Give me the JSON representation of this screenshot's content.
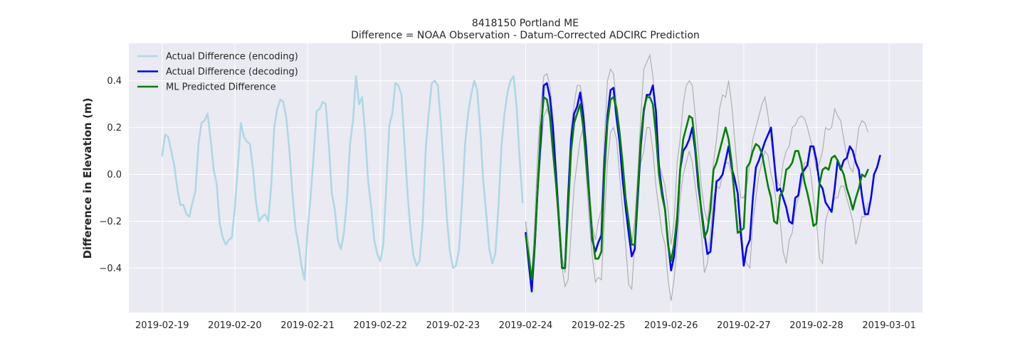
{
  "chart_data": {
    "type": "line",
    "title": "8418150 Portland ME",
    "subtitle": "Difference = NOAA Observation - Datum-Corrected ADCIRC Prediction",
    "xlabel": "",
    "ylabel": "Difference in Elevation (m)",
    "x_ticks": [
      "2019-02-19",
      "2019-02-20",
      "2019-02-21",
      "2019-02-22",
      "2019-02-23",
      "2019-02-24",
      "2019-02-25",
      "2019-02-26",
      "2019-02-27",
      "2019-02-28",
      "2019-03-01"
    ],
    "y_ticks": [
      "−0.4",
      "−0.2",
      "0.0",
      "0.2",
      "0.4"
    ],
    "y_tick_values": [
      -0.4,
      -0.2,
      0.0,
      0.2,
      0.4
    ],
    "xlim": [
      "2019-02-18T13:00",
      "2019-03-01T11:00"
    ],
    "ylim": [
      -0.59,
      0.56
    ],
    "grid": true,
    "legend_position": "upper left",
    "colors": {
      "background": "#eaeaf2",
      "grid": "#ffffff",
      "encoding": "#add8e6",
      "decoding": "#0000ff",
      "predicted": "#008000",
      "envelope": "#b0b0b0"
    },
    "series": [
      {
        "name": "Actual Difference (encoding)",
        "color": "#add8e6",
        "start": "2019-02-19T00:00",
        "step_hours": 1,
        "values": [
          0.08,
          0.17,
          0.16,
          0.1,
          0.04,
          -0.06,
          -0.13,
          -0.13,
          -0.17,
          -0.18,
          -0.12,
          -0.07,
          0.13,
          0.22,
          0.23,
          0.26,
          0.15,
          0.02,
          -0.04,
          -0.21,
          -0.27,
          -0.3,
          -0.28,
          -0.27,
          -0.14,
          0.04,
          0.22,
          0.16,
          0.14,
          0.13,
          0.02,
          -0.12,
          -0.2,
          -0.18,
          -0.17,
          -0.2,
          -0.05,
          0.2,
          0.28,
          0.32,
          0.31,
          0.24,
          0.1,
          -0.08,
          -0.23,
          -0.3,
          -0.39,
          -0.45,
          -0.24,
          -0.1,
          0.08,
          0.27,
          0.28,
          0.31,
          0.3,
          0.13,
          -0.08,
          -0.15,
          -0.28,
          -0.32,
          -0.25,
          -0.11,
          0.13,
          0.23,
          0.42,
          0.3,
          0.33,
          0.18,
          -0.03,
          -0.14,
          -0.28,
          -0.34,
          -0.37,
          -0.3,
          -0.05,
          0.21,
          0.26,
          0.39,
          0.38,
          0.34,
          0.13,
          -0.08,
          -0.24,
          -0.35,
          -0.39,
          -0.37,
          -0.21,
          0.11,
          0.26,
          0.39,
          0.4,
          0.38,
          0.22,
          0.02,
          -0.19,
          -0.33,
          -0.4,
          -0.39,
          -0.32,
          -0.12,
          0.13,
          0.26,
          0.34,
          0.4,
          0.36,
          0.19,
          -0.03,
          -0.17,
          -0.32,
          -0.38,
          -0.34,
          -0.14,
          0.12,
          0.26,
          0.35,
          0.4,
          0.42,
          0.29,
          0.07,
          -0.12
        ]
      },
      {
        "name": "Actual Difference (decoding)",
        "color": "#0000ff",
        "start": "2019-02-24T00:00",
        "step_hours": 1,
        "values": [
          -0.25,
          -0.38,
          -0.5,
          -0.3,
          -0.05,
          0.15,
          0.38,
          0.39,
          0.33,
          0.2,
          0.0,
          -0.2,
          -0.4,
          -0.4,
          -0.1,
          0.15,
          0.26,
          0.29,
          0.35,
          0.25,
          0.1,
          -0.1,
          -0.28,
          -0.33,
          -0.29,
          -0.26,
          0.05,
          0.25,
          0.36,
          0.37,
          0.24,
          0.14,
          -0.02,
          -0.14,
          -0.25,
          -0.35,
          -0.32,
          -0.1,
          0.12,
          0.27,
          0.34,
          0.34,
          0.38,
          0.27,
          0.03,
          -0.07,
          -0.15,
          -0.29,
          -0.41,
          -0.35,
          -0.2,
          0.02,
          0.1,
          0.12,
          0.15,
          0.2,
          0.1,
          -0.05,
          -0.15,
          -0.25,
          -0.34,
          -0.33,
          -0.18,
          -0.03,
          -0.02,
          0.0,
          0.06,
          0.12,
          0.03,
          -0.02,
          -0.08,
          -0.25,
          -0.39,
          -0.31,
          -0.28,
          -0.1,
          0.03,
          0.06,
          0.1,
          0.14,
          0.17,
          0.2,
          0.06,
          -0.07,
          -0.06,
          -0.1,
          -0.14,
          -0.2,
          -0.21,
          -0.1,
          -0.09,
          0.0,
          0.02,
          0.04,
          0.12,
          0.12,
          0.06,
          -0.04,
          -0.06,
          -0.12,
          -0.14,
          -0.16,
          -0.06,
          0.06,
          0.02,
          0.06,
          0.07,
          0.12,
          0.1,
          0.05,
          0.02,
          -0.09,
          -0.17,
          -0.17,
          -0.1,
          0.0,
          0.03,
          0.08
        ]
      },
      {
        "name": "ML Predicted Difference",
        "color": "#008000",
        "start": "2019-02-24T00:00",
        "step_hours": 1,
        "values": [
          -0.26,
          -0.35,
          -0.45,
          -0.3,
          -0.05,
          0.2,
          0.33,
          0.32,
          0.25,
          0.1,
          -0.04,
          -0.2,
          -0.4,
          -0.4,
          -0.15,
          0.1,
          0.22,
          0.26,
          0.3,
          0.2,
          0.05,
          -0.1,
          -0.26,
          -0.36,
          -0.36,
          -0.33,
          0.0,
          0.22,
          0.32,
          0.33,
          0.28,
          0.18,
          0.05,
          -0.1,
          -0.2,
          -0.3,
          -0.3,
          -0.07,
          0.15,
          0.28,
          0.33,
          0.33,
          0.3,
          0.17,
          0.0,
          -0.09,
          -0.15,
          -0.3,
          -0.37,
          -0.3,
          -0.18,
          0.02,
          0.15,
          0.2,
          0.25,
          0.24,
          0.12,
          -0.02,
          -0.16,
          -0.27,
          -0.24,
          -0.15,
          0.02,
          0.05,
          0.1,
          0.15,
          0.2,
          0.15,
          0.05,
          -0.1,
          -0.25,
          -0.24,
          -0.23,
          0.03,
          0.05,
          0.1,
          0.13,
          0.12,
          0.09,
          0.02,
          -0.05,
          -0.1,
          -0.2,
          -0.21,
          -0.09,
          -0.07,
          0.02,
          0.03,
          0.05,
          0.1,
          0.1,
          0.05,
          -0.03,
          -0.08,
          -0.14,
          -0.22,
          -0.21,
          -0.04,
          0.02,
          0.03,
          0.02,
          0.07,
          0.08,
          0.06,
          0.03,
          0.0,
          -0.06,
          -0.1,
          -0.15,
          -0.1,
          -0.06,
          0.0,
          -0.01,
          0.02
        ]
      }
    ],
    "envelope": {
      "start": "2019-02-24T00:00",
      "step_hours": 1,
      "upper": [
        -0.2,
        -0.3,
        -0.45,
        -0.2,
        0.1,
        0.3,
        0.42,
        0.43,
        0.38,
        0.25,
        0.05,
        -0.15,
        -0.35,
        -0.42,
        -0.05,
        0.2,
        0.3,
        0.38,
        0.38,
        0.3,
        0.15,
        -0.05,
        -0.22,
        -0.28,
        -0.2,
        -0.15,
        0.15,
        0.4,
        0.45,
        0.43,
        0.3,
        0.2,
        0.05,
        -0.1,
        -0.2,
        -0.3,
        -0.2,
        0.0,
        0.25,
        0.45,
        0.48,
        0.51,
        0.42,
        0.25,
        0.05,
        0.0,
        -0.05,
        -0.15,
        -0.3,
        -0.2,
        0.05,
        0.15,
        0.3,
        0.38,
        0.4,
        0.38,
        0.25,
        0.1,
        -0.05,
        -0.15,
        -0.2,
        -0.1,
        0.05,
        0.15,
        0.28,
        0.34,
        0.33,
        0.4,
        0.3,
        0.15,
        0.0,
        -0.1,
        -0.1,
        -0.05,
        0.05,
        0.15,
        0.2,
        0.25,
        0.3,
        0.33,
        0.25,
        0.15,
        0.05,
        -0.03,
        -0.05,
        0.05,
        0.1,
        0.12,
        0.2,
        0.21,
        0.24,
        0.25,
        0.24,
        0.2,
        0.15,
        0.1,
        0.02,
        0.05,
        0.1,
        0.2,
        0.19,
        0.2,
        0.28,
        0.25,
        0.23,
        0.15,
        0.08,
        0.03,
        0.01,
        0.1,
        0.2,
        0.23,
        0.22,
        0.18
      ],
      "lower": [
        -0.2,
        -0.4,
        -0.45,
        -0.35,
        -0.1,
        0.1,
        0.25,
        0.28,
        0.24,
        0.15,
        -0.05,
        -0.25,
        -0.4,
        -0.48,
        -0.45,
        -0.25,
        -0.05,
        0.05,
        0.15,
        0.2,
        0.0,
        -0.2,
        -0.35,
        -0.46,
        -0.44,
        -0.45,
        -0.2,
        0.05,
        0.18,
        0.2,
        0.15,
        0.0,
        -0.15,
        -0.3,
        -0.47,
        -0.49,
        -0.3,
        -0.05,
        0.05,
        0.1,
        0.2,
        0.2,
        0.1,
        -0.05,
        -0.15,
        -0.25,
        -0.3,
        -0.45,
        -0.54,
        -0.45,
        -0.3,
        -0.1,
        0.0,
        0.05,
        0.1,
        0.05,
        -0.05,
        -0.15,
        -0.25,
        -0.42,
        -0.38,
        -0.25,
        -0.1,
        -0.05,
        -0.06,
        0.0,
        0.05,
        0.05,
        0.0,
        -0.1,
        -0.12,
        -0.2,
        -0.35,
        -0.38,
        -0.4,
        -0.2,
        -0.1,
        0.0,
        0.05,
        0.1,
        0.08,
        0.0,
        -0.05,
        -0.15,
        -0.2,
        -0.33,
        -0.38,
        -0.28,
        -0.25,
        -0.15,
        -0.1,
        -0.05,
        0.05,
        0.05,
        0.02,
        -0.1,
        -0.2,
        -0.36,
        -0.38,
        -0.2,
        -0.15,
        -0.15,
        -0.1,
        -0.1,
        -0.05,
        -0.05,
        -0.1,
        -0.15,
        -0.2,
        -0.3,
        -0.25,
        -0.18,
        -0.18,
        -0.12
      ]
    }
  }
}
